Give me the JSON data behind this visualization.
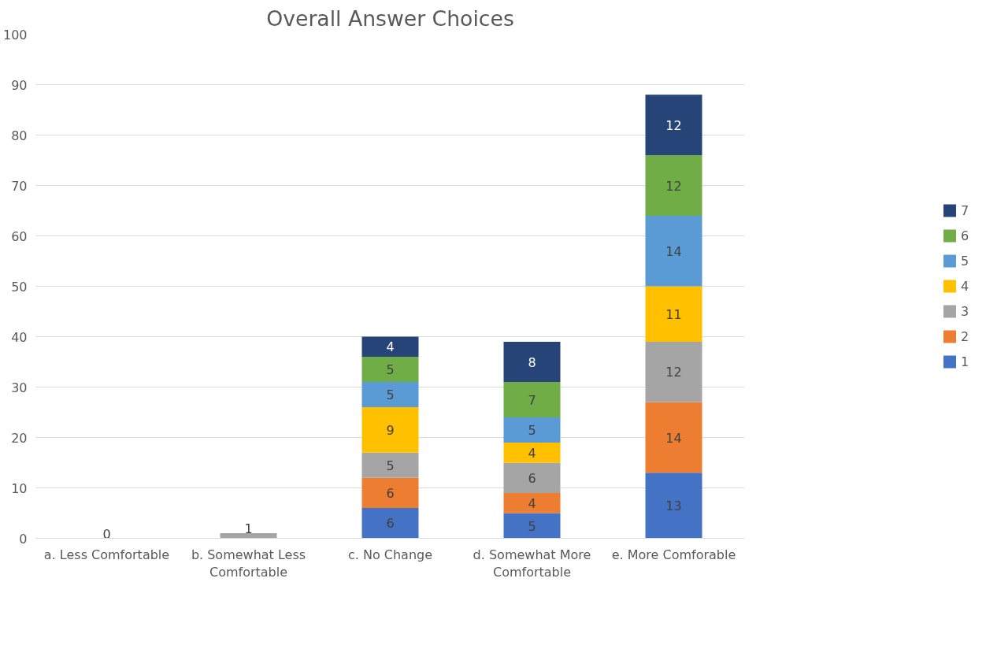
{
  "chart_data": {
    "type": "bar",
    "title": "Overall Answer Choices",
    "stacked": true,
    "grid": "y",
    "legend": "right",
    "categories": [
      "a. Less Comfortable",
      "b. Somewhat Less Comfortable",
      "c. No Change",
      "d. Somewhat More Comfortable",
      "e. More Comforable"
    ],
    "ylim": [
      0,
      100
    ],
    "yticks": [
      0,
      10,
      20,
      30,
      40,
      50,
      60,
      70,
      80,
      90,
      100
    ],
    "series": [
      {
        "name": "1",
        "color": "#4472c4",
        "values": [
          0,
          0,
          6,
          5,
          13
        ],
        "value_labels": [
          "0",
          null,
          "6",
          "5",
          "13"
        ]
      },
      {
        "name": "2",
        "color": "#ed7d31",
        "values": [
          0,
          0,
          6,
          4,
          14
        ],
        "value_labels": [
          null,
          null,
          "6",
          "4",
          "14"
        ]
      },
      {
        "name": "3",
        "color": "#a5a5a5",
        "values": [
          0,
          1,
          5,
          6,
          12
        ],
        "value_labels": [
          null,
          "1",
          "5",
          "6",
          "12"
        ]
      },
      {
        "name": "4",
        "color": "#ffc000",
        "values": [
          0,
          0,
          9,
          4,
          11
        ],
        "value_labels": [
          null,
          null,
          "9",
          "4",
          "11"
        ]
      },
      {
        "name": "5",
        "color": "#5b9bd5",
        "values": [
          0,
          0,
          5,
          5,
          14
        ],
        "value_labels": [
          null,
          null,
          "5",
          "5",
          "14"
        ]
      },
      {
        "name": "6",
        "color": "#70ad47",
        "values": [
          0,
          0,
          5,
          7,
          12
        ],
        "value_labels": [
          null,
          null,
          "5",
          "7",
          "12"
        ]
      },
      {
        "name": "7",
        "color": "#264478",
        "values": [
          0,
          0,
          4,
          8,
          12
        ],
        "value_labels": [
          null,
          null,
          "4",
          "8",
          "12"
        ]
      }
    ]
  }
}
